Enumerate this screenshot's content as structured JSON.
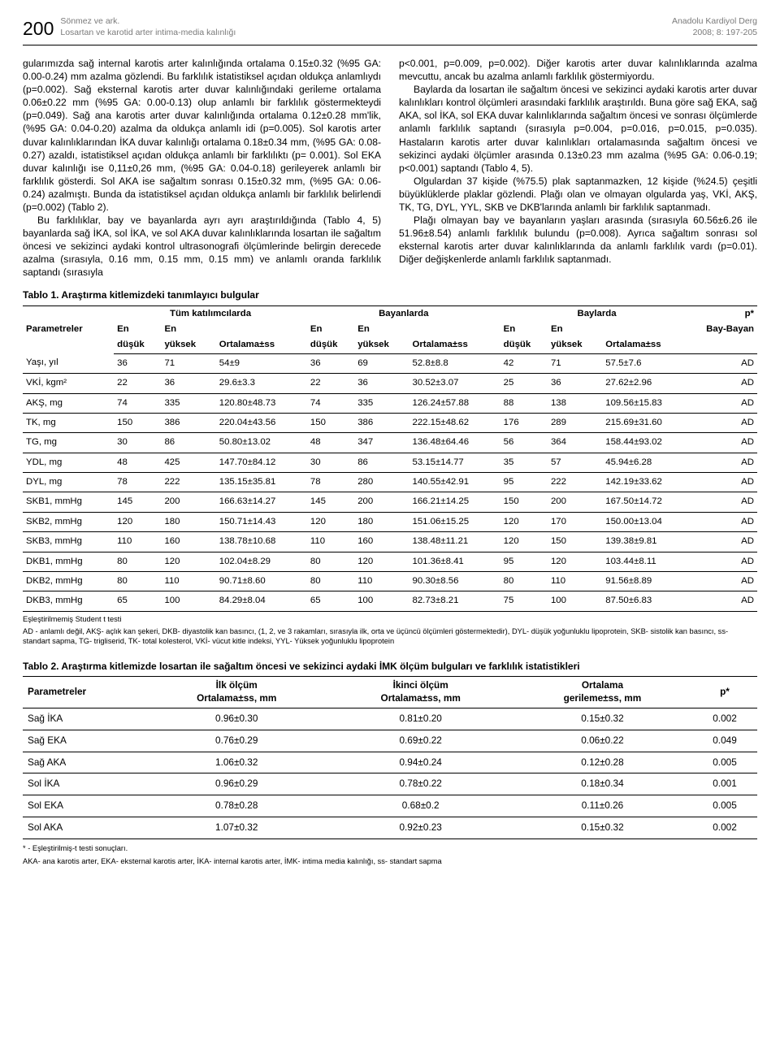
{
  "header": {
    "page_number": "200",
    "left_line1": "Sönmez ve ark.",
    "left_line2": "Losartan ve karotid arter intima-media kalınlığı",
    "right_line1": "Anadolu Kardiyol Derg",
    "right_line2": "2008; 8: 197-205"
  },
  "body": {
    "left": "gularımızda sağ internal karotis arter kalınlığında ortalama 0.15±0.32 (%95 GA: 0.00-0.24) mm azalma gözlendi. Bu farklılık istatistiksel açıdan oldukça anlamlıydı (p=0.002). Sağ eksternal karotis arter duvar kalınlığındaki gerileme ortalama 0.06±0.22 mm (%95 GA: 0.00-0.13) olup anlamlı bir farklılık göstermekteydi (p=0.049). Sağ ana karotis arter duvar kalınlığında ortalama 0.12±0.28 mm'lik, (%95 GA: 0.04-0.20) azalma da oldukça anlamlı idi (p=0.005). Sol karotis arter duvar kalınlıklarından İKA duvar kalınlığı ortalama 0.18±0.34 mm, (%95 GA: 0.08-0.27) azaldı, istatistiksel açıdan oldukça anlamlı bir farklılıktı (p= 0.001). Sol EKA duvar kalınlığı ise 0,11±0,26 mm, (%95 GA: 0.04-0.18) gerileyerek anlamlı bir farklılık gösterdi. Sol AKA ise sağaltım sonrası 0.15±0.32 mm, (%95 GA: 0.06-0.24) azalmıştı. Bunda da istatistiksel açıdan oldukça anlamlı bir farklılık belirlendi (p=0.002) (Tablo 2).",
    "left2": "Bu farklılıklar, bay ve bayanlarda ayrı ayrı araştırıldığında (Tablo 4, 5) bayanlarda sağ İKA, sol İKA, ve sol AKA duvar kalınlıklarında losartan ile sağaltım öncesi ve sekizinci aydaki kontrol ultrasonografi ölçümlerinde belirgin derecede azalma (sırasıyla, 0.16 mm, 0.15 mm, 0.15 mm) ve anlamlı oranda farklılık saptandı (sırasıyla",
    "right": "p<0.001, p=0.009, p=0.002). Diğer karotis arter duvar kalınlıklarında azalma mevcuttu, ancak bu azalma anlamlı farklılık göstermiyordu.",
    "right2": "Baylarda da losartan ile sağaltım öncesi ve sekizinci aydaki karotis arter duvar kalınlıkları kontrol ölçümleri arasındaki farklılık araştırıldı. Buna göre sağ EKA, sağ AKA, sol İKA, sol EKA duvar kalınlıklarında sağaltım öncesi ve sonrası ölçümlerde anlamlı farklılık saptandı (sırasıyla p=0.004, p=0.016, p=0.015, p=0.035). Hastaların karotis arter duvar kalınlıkları ortalamasında sağaltım öncesi ve sekizinci aydaki ölçümler arasında 0.13±0.23 mm azalma (%95 GA: 0.06-0.19; p<0.001) saptandı (Tablo 4, 5).",
    "right3": "Olgulardan 37 kişide (%75.5) plak saptanmazken, 12 kişide (%24.5) çeşitli büyüklüklerde plaklar gözlendi. Plağı olan ve olmayan olgularda yaş, VKİ, AKŞ, TK, TG, DYL, YYL, SKB ve DKB'larında anlamlı bir farklılık saptanmadı.",
    "right4": "Plağı olmayan bay ve bayanların yaşları arasında (sırasıyla 60.56±6.26 ile 51.96±8.54) anlamlı farklılık bulundu (p=0.008). Ayrıca sağaltım sonrası sol eksternal karotis arter duvar kalınlıklarında da anlamlı farklılık vardı (p=0.01). Diğer değişkenlerde anlamlı farklılık saptanmadı."
  },
  "table1": {
    "title": "Tablo 1. Araştırma kitlemizdeki tanımlayıcı bulgular",
    "group_headers": [
      "Tüm katılımcılarda",
      "Bayanlarda",
      "Baylarda"
    ],
    "param_label": "Parametreler",
    "sub_headers": [
      "En düşük",
      "En yüksek",
      "Ortalama±ss"
    ],
    "p_label": "p*",
    "p_sub": "Bay-Bayan",
    "rows": [
      {
        "p": "Yaşı, yıl",
        "a": [
          "36",
          "71",
          "54±9"
        ],
        "b": [
          "36",
          "69",
          "52.8±8.8"
        ],
        "c": [
          "42",
          "71",
          "57.5±7.6"
        ],
        "q": "AD"
      },
      {
        "p": "VKİ, kgm²",
        "a": [
          "22",
          "36",
          "29.6±3.3"
        ],
        "b": [
          "22",
          "36",
          "30.52±3.07"
        ],
        "c": [
          "25",
          "36",
          "27.62±2.96"
        ],
        "q": "AD"
      },
      {
        "p": "AKŞ, mg",
        "a": [
          "74",
          "335",
          "120.80±48.73"
        ],
        "b": [
          "74",
          "335",
          "126.24±57.88"
        ],
        "c": [
          "88",
          "138",
          "109.56±15.83"
        ],
        "q": "AD"
      },
      {
        "p": "TK, mg",
        "a": [
          "150",
          "386",
          "220.04±43.56"
        ],
        "b": [
          "150",
          "386",
          "222.15±48.62"
        ],
        "c": [
          "176",
          "289",
          "215.69±31.60"
        ],
        "q": "AD"
      },
      {
        "p": "TG, mg",
        "a": [
          "30",
          "86",
          "50.80±13.02"
        ],
        "b": [
          "48",
          "347",
          "136.48±64.46"
        ],
        "c": [
          "56",
          "364",
          "158.44±93.02"
        ],
        "q": "AD"
      },
      {
        "p": "YDL, mg",
        "a": [
          "48",
          "425",
          "147.70±84.12"
        ],
        "b": [
          "30",
          "86",
          "53.15±14.77"
        ],
        "c": [
          "35",
          "57",
          "45.94±6.28"
        ],
        "q": "AD"
      },
      {
        "p": "DYL, mg",
        "a": [
          "78",
          "222",
          "135.15±35.81"
        ],
        "b": [
          "78",
          "280",
          "140.55±42.91"
        ],
        "c": [
          "95",
          "222",
          "142.19±33.62"
        ],
        "q": "AD"
      },
      {
        "p": "SKB1, mmHg",
        "a": [
          "145",
          "200",
          "166.63±14.27"
        ],
        "b": [
          "145",
          "200",
          "166.21±14.25"
        ],
        "c": [
          "150",
          "200",
          "167.50±14.72"
        ],
        "q": "AD"
      },
      {
        "p": "SKB2, mmHg",
        "a": [
          "120",
          "180",
          "150.71±14.43"
        ],
        "b": [
          "120",
          "180",
          "151.06±15.25"
        ],
        "c": [
          "120",
          "170",
          "150.00±13.04"
        ],
        "q": "AD"
      },
      {
        "p": "SKB3, mmHg",
        "a": [
          "110",
          "160",
          "138.78±10.68"
        ],
        "b": [
          "110",
          "160",
          "138.48±11.21"
        ],
        "c": [
          "120",
          "150",
          "139.38±9.81"
        ],
        "q": "AD"
      },
      {
        "p": "DKB1, mmHg",
        "a": [
          "80",
          "120",
          "102.04±8.29"
        ],
        "b": [
          "80",
          "120",
          "101.36±8.41"
        ],
        "c": [
          "95",
          "120",
          "103.44±8.11"
        ],
        "q": "AD"
      },
      {
        "p": "DKB2, mmHg",
        "a": [
          "80",
          "110",
          "90.71±8.60"
        ],
        "b": [
          "80",
          "110",
          "90.30±8.56"
        ],
        "c": [
          "80",
          "110",
          "91.56±8.89"
        ],
        "q": "AD"
      },
      {
        "p": "DKB3, mmHg",
        "a": [
          "65",
          "100",
          "84.29±8.04"
        ],
        "b": [
          "65",
          "100",
          "82.73±8.21"
        ],
        "c": [
          "75",
          "100",
          "87.50±6.83"
        ],
        "q": "AD"
      }
    ],
    "footnote1": "Eşleştirilmemiş Student t testi",
    "footnote2": "AD - anlamlı değil, AKŞ- açlık kan şekeri, DKB- diyastolik kan basıncı, (1, 2, ve 3 rakamları, sırasıyla ilk, orta ve üçüncü ölçümleri göstermektedir), DYL- düşük yoğunluklu lipoprotein, SKB- sistolik kan basıncı, ss- standart sapma, TG- trigliserid, TK- total kolesterol, VKİ- vücut kitle indeksi, YYL- Yüksek yoğunluklu lipoprotein"
  },
  "table2": {
    "title": "Tablo 2. Araştırma kitlemizde losartan ile sağaltım öncesi ve sekizinci aydaki İMK ölçüm bulguları ve farklılık istatistikleri",
    "headers": [
      "Parametreler",
      "İlk ölçüm Ortalama±ss, mm",
      "İkinci ölçüm Ortalama±ss, mm",
      "Ortalama gerileme±ss, mm",
      "p*"
    ],
    "h1a": "İlk ölçüm",
    "h1b": "Ortalama±ss, mm",
    "h2a": "İkinci ölçüm",
    "h2b": "Ortalama±ss, mm",
    "h3a": "Ortalama",
    "h3b": "gerileme±ss, mm",
    "rows": [
      {
        "p": "Sağ İKA",
        "a": "0.96±0.30",
        "b": "0.81±0.20",
        "c": "0.15±0.32",
        "q": "0.002"
      },
      {
        "p": "Sağ EKA",
        "a": "0.76±0.29",
        "b": "0.69±0.22",
        "c": "0.06±0.22",
        "q": "0.049"
      },
      {
        "p": "Sağ AKA",
        "a": "1.06±0.32",
        "b": "0.94±0.24",
        "c": "0.12±0.28",
        "q": "0.005"
      },
      {
        "p": "Sol İKA",
        "a": "0.96±0.29",
        "b": "0.78±0.22",
        "c": "0.18±0.34",
        "q": "0.001"
      },
      {
        "p": "Sol EKA",
        "a": "0.78±0.28",
        "b": "0.68±0.2",
        "c": "0.11±0.26",
        "q": "0.005"
      },
      {
        "p": "Sol AKA",
        "a": "1.07±0.32",
        "b": "0.92±0.23",
        "c": "0.15±0.32",
        "q": "0.002"
      }
    ],
    "footnote1": "* - Eşleştirilmiş-t testi sonuçları.",
    "footnote2": "AKA- ana karotis arter, EKA- eksternal karotis arter, İKA- internal karotis arter, İMK- intima media kalınlığı, ss- standart sapma"
  }
}
